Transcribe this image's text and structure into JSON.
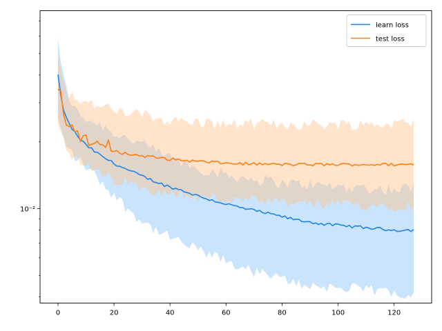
{
  "chart_data": {
    "type": "line",
    "title": "",
    "xlabel": "",
    "ylabel": "",
    "x_scale": "linear",
    "y_scale": "log",
    "xlim": [
      -6.4,
      133.4
    ],
    "ylim": [
      0.00375,
      0.078
    ],
    "grid": false,
    "legend_position": "top-right",
    "x_ticks": [
      0,
      20,
      40,
      60,
      80,
      100,
      120
    ],
    "y_major_ticks": [
      {
        "value": 0.01,
        "label": "10⁻²"
      }
    ],
    "y_minor_ticks": [
      0.004,
      0.005,
      0.006,
      0.007,
      0.008,
      0.009,
      0.02,
      0.03,
      0.04,
      0.05,
      0.06,
      0.07
    ],
    "x_max": 127,
    "series": [
      {
        "name": "learn loss",
        "color": "#1f84e8",
        "band_color": "#63b3f5",
        "band_opacity": 0.35,
        "mean_anchors": [
          [
            0,
            0.04
          ],
          [
            1,
            0.032
          ],
          [
            2,
            0.028
          ],
          [
            3,
            0.0255
          ],
          [
            4,
            0.024
          ],
          [
            6,
            0.022
          ],
          [
            8,
            0.0205
          ],
          [
            10,
            0.0193
          ],
          [
            15,
            0.0174
          ],
          [
            20,
            0.016
          ],
          [
            25,
            0.0149
          ],
          [
            30,
            0.014
          ],
          [
            35,
            0.0132
          ],
          [
            40,
            0.0125
          ],
          [
            45,
            0.012
          ],
          [
            50,
            0.0114
          ],
          [
            55,
            0.0109
          ],
          [
            60,
            0.0105
          ],
          [
            65,
            0.0101
          ],
          [
            70,
            0.0098
          ],
          [
            75,
            0.0095
          ],
          [
            80,
            0.0092
          ],
          [
            85,
            0.0089
          ],
          [
            90,
            0.0087
          ],
          [
            95,
            0.0085
          ],
          [
            100,
            0.0084
          ],
          [
            105,
            0.0083
          ],
          [
            110,
            0.0082
          ],
          [
            115,
            0.0081
          ],
          [
            120,
            0.008
          ],
          [
            127,
            0.008
          ]
        ],
        "upper_anchors": [
          [
            0,
            0.06
          ],
          [
            1,
            0.045
          ],
          [
            2,
            0.038
          ],
          [
            4,
            0.032
          ],
          [
            6,
            0.028
          ],
          [
            10,
            0.0255
          ],
          [
            15,
            0.024
          ],
          [
            20,
            0.022
          ],
          [
            30,
            0.0195
          ],
          [
            40,
            0.017
          ],
          [
            50,
            0.0152
          ],
          [
            60,
            0.0142
          ],
          [
            70,
            0.0136
          ],
          [
            80,
            0.0131
          ],
          [
            90,
            0.0128
          ],
          [
            100,
            0.0126
          ],
          [
            110,
            0.0124
          ],
          [
            120,
            0.0122
          ],
          [
            127,
            0.0125
          ]
        ],
        "lower_anchors": [
          [
            0,
            0.025
          ],
          [
            2,
            0.0205
          ],
          [
            4,
            0.0185
          ],
          [
            6,
            0.0172
          ],
          [
            10,
            0.0155
          ],
          [
            15,
            0.0134
          ],
          [
            20,
            0.0115
          ],
          [
            25,
            0.01
          ],
          [
            30,
            0.0088
          ],
          [
            35,
            0.008
          ],
          [
            40,
            0.0074
          ],
          [
            50,
            0.0065
          ],
          [
            60,
            0.0058
          ],
          [
            70,
            0.0052
          ],
          [
            80,
            0.0048
          ],
          [
            90,
            0.0045
          ],
          [
            100,
            0.0044
          ],
          [
            110,
            0.0043
          ],
          [
            120,
            0.0042
          ],
          [
            127,
            0.0041
          ]
        ]
      },
      {
        "name": "test loss",
        "color": "#ff7f0e",
        "band_color": "#ffc48c",
        "band_opacity": 0.45,
        "mean_anchors": [
          [
            0,
            0.0355
          ],
          [
            1,
            0.033
          ],
          [
            2,
            0.027
          ],
          [
            3,
            0.024
          ],
          [
            4,
            0.0225
          ],
          [
            6,
            0.0232
          ],
          [
            8,
            0.0205
          ],
          [
            10,
            0.0215
          ],
          [
            12,
            0.019
          ],
          [
            14,
            0.0205
          ],
          [
            16,
            0.0185
          ],
          [
            18,
            0.0195
          ],
          [
            20,
            0.0182
          ],
          [
            25,
            0.0176
          ],
          [
            30,
            0.0173
          ],
          [
            35,
            0.017
          ],
          [
            40,
            0.0167
          ],
          [
            45,
            0.0165
          ],
          [
            50,
            0.0163
          ],
          [
            55,
            0.0162
          ],
          [
            60,
            0.016
          ],
          [
            70,
            0.0159
          ],
          [
            80,
            0.0158
          ],
          [
            90,
            0.0158
          ],
          [
            100,
            0.0158
          ],
          [
            110,
            0.0158
          ],
          [
            120,
            0.0158
          ],
          [
            127,
            0.0158
          ]
        ],
        "upper_anchors": [
          [
            0,
            0.05
          ],
          [
            1,
            0.044
          ],
          [
            2,
            0.038
          ],
          [
            4,
            0.033
          ],
          [
            6,
            0.032
          ],
          [
            10,
            0.03
          ],
          [
            15,
            0.029
          ],
          [
            20,
            0.0275
          ],
          [
            30,
            0.0265
          ],
          [
            40,
            0.025
          ],
          [
            50,
            0.0245
          ],
          [
            60,
            0.024
          ],
          [
            80,
            0.024
          ],
          [
            100,
            0.024
          ],
          [
            120,
            0.024
          ],
          [
            127,
            0.0245
          ]
        ],
        "lower_anchors": [
          [
            0,
            0.025
          ],
          [
            2,
            0.021
          ],
          [
            4,
            0.0178
          ],
          [
            6,
            0.0165
          ],
          [
            10,
            0.0155
          ],
          [
            15,
            0.0143
          ],
          [
            20,
            0.0135
          ],
          [
            30,
            0.0125
          ],
          [
            40,
            0.0118
          ],
          [
            50,
            0.0113
          ],
          [
            60,
            0.011
          ],
          [
            80,
            0.0106
          ],
          [
            100,
            0.0104
          ],
          [
            120,
            0.0103
          ],
          [
            127,
            0.0104
          ]
        ]
      }
    ]
  }
}
